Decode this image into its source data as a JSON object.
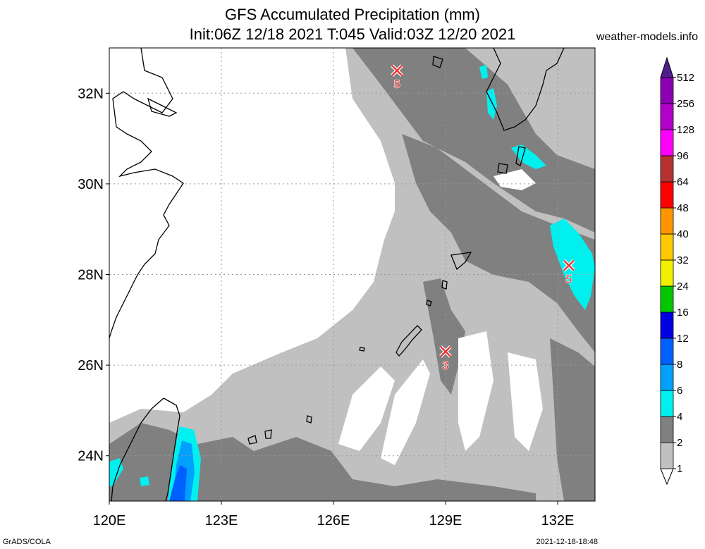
{
  "title": {
    "line1": "GFS Accumulated Precipitation (mm)",
    "line2": "Init:06Z 12/18 2021 T:045 Valid:03Z 12/20 2021"
  },
  "site": "weather-models.info",
  "footer": {
    "left": "GrADS/COLA",
    "right": "2021-12-18-18:48"
  },
  "map": {
    "lon_range": [
      120,
      133
    ],
    "lat_range": [
      23,
      33
    ],
    "lon_ticks": [
      {
        "value": 120,
        "label": "120E"
      },
      {
        "value": 123,
        "label": "123E"
      },
      {
        "value": 126,
        "label": "126E"
      },
      {
        "value": 129,
        "label": "129E"
      },
      {
        "value": 132,
        "label": "132E"
      }
    ],
    "lat_ticks": [
      {
        "value": 24,
        "label": "24N"
      },
      {
        "value": 26,
        "label": "26N"
      },
      {
        "value": 28,
        "label": "28N"
      },
      {
        "value": 30,
        "label": "30N"
      },
      {
        "value": 32,
        "label": "32N"
      }
    ],
    "markers": [
      {
        "lon": 127.7,
        "lat": 32.5,
        "label": "5"
      },
      {
        "lon": 132.3,
        "lat": 28.2,
        "label": "5"
      },
      {
        "lon": 129.0,
        "lat": 26.3,
        "label": "3"
      }
    ]
  },
  "colorbar": {
    "levels": [
      {
        "label": "1",
        "color": "#ffffff"
      },
      {
        "label": "2",
        "color": "#c0c0c0"
      },
      {
        "label": "4",
        "color": "#808080"
      },
      {
        "label": "6",
        "color": "#00f0f0"
      },
      {
        "label": "8",
        "color": "#00a0ff"
      },
      {
        "label": "12",
        "color": "#0060ff"
      },
      {
        "label": "16",
        "color": "#0000e0"
      },
      {
        "label": "24",
        "color": "#00c800"
      },
      {
        "label": "32",
        "color": "#f0f000"
      },
      {
        "label": "40",
        "color": "#ffc800"
      },
      {
        "label": "48",
        "color": "#ff9600"
      },
      {
        "label": "64",
        "color": "#ff0000"
      },
      {
        "label": "96",
        "color": "#b43232"
      },
      {
        "label": "128",
        "color": "#ff00ff"
      },
      {
        "label": "256",
        "color": "#b400c8"
      },
      {
        "label": "512",
        "color": "#8c00b4"
      }
    ],
    "top_color": "#501e8c"
  }
}
